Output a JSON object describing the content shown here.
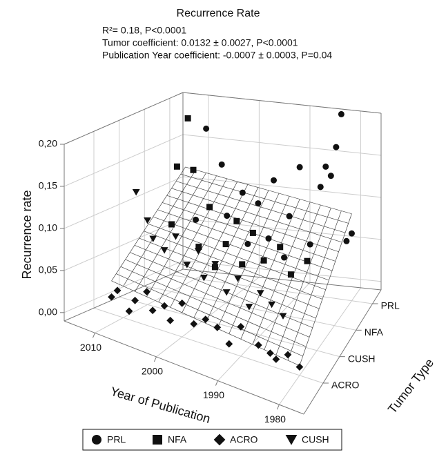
{
  "chart_data": {
    "type": "scatter3d",
    "title": "Recurrence Rate",
    "annotations": [
      "R²= 0.18, P<0.0001",
      "Tumor coefficient: 0.0132 ± 0.0027, P<0.0001",
      "Publication Year coefficient: -0.0007 ± 0.0003, P=0.04"
    ],
    "xlabel": "Year of Publication",
    "ylabel": "Tumor Type",
    "zlabel": "Recurrence rate",
    "xlim": [
      1976,
      2015
    ],
    "xticks": [
      2010,
      2000,
      1990,
      1980
    ],
    "categories": [
      "ACRO",
      "CUSH",
      "NFA",
      "PRL"
    ],
    "zlim": [
      -0.01,
      0.2
    ],
    "zticks": [
      {
        "value": 0,
        "label": "0,00"
      },
      {
        "value": 0.05,
        "label": "0,05"
      },
      {
        "value": 0.1,
        "label": "0,10"
      },
      {
        "value": 0.15,
        "label": "0,15"
      },
      {
        "value": 0.2,
        "label": "0,20"
      }
    ],
    "series": [
      {
        "name": "PRL",
        "marker": "circle",
        "color": "#111111",
        "x": [
          2008,
          2005,
          1982,
          1983,
          1985,
          1990,
          1984,
          1995,
          1986,
          2001,
          1998,
          1992,
          2004,
          1980,
          1981,
          1996,
          2010,
          1988,
          2000,
          1993
        ],
        "values": [
          0.17,
          0.13,
          0.21,
          0.17,
          0.145,
          0.14,
          0.135,
          0.12,
          0.12,
          0.1,
          0.09,
          0.08,
          0.07,
          0.07,
          0.06,
          0.05,
          0.06,
          0.05,
          0.04,
          0.03
        ]
      },
      {
        "name": "NFA",
        "marker": "square",
        "color": "#111111",
        "x": [
          2007,
          2009,
          2006,
          2003,
          1998,
          1995,
          2010,
          1990,
          2000,
          1985,
          2005,
          1993,
          1988,
          2002,
          1997
        ],
        "values": [
          0.2,
          0.14,
          0.14,
          0.1,
          0.09,
          0.08,
          0.07,
          0.07,
          0.06,
          0.06,
          0.05,
          0.05,
          0.04,
          0.03,
          0.04
        ]
      },
      {
        "name": "ACRO",
        "marker": "diamond",
        "color": "#111111",
        "x": [
          2012,
          2011,
          2009,
          2008,
          2006,
          2005,
          2003,
          2002,
          2000,
          1998,
          1996,
          1994,
          1992,
          1990,
          1987,
          1985,
          1984,
          1982,
          1980
        ],
        "values": [
          0.01,
          0.02,
          0,
          0.015,
          0.03,
          0.01,
          0.02,
          0.005,
          0.03,
          0.01,
          0.02,
          0.015,
          0,
          0.025,
          0.01,
          0.005,
          0,
          0.01,
          0
        ]
      },
      {
        "name": "CUSH",
        "marker": "triangle-down",
        "color": "#111111",
        "x": [
          2012,
          2010,
          2009,
          2007,
          2005,
          2003,
          2001,
          2000,
          1998,
          1996,
          1994,
          1992,
          1990,
          1988,
          1986
        ],
        "values": [
          0.12,
          0.09,
          0.07,
          0.06,
          0.08,
          0.05,
          0.07,
          0.04,
          0.06,
          0.03,
          0.05,
          0.02,
          0.04,
          0.03,
          0.02
        ]
      }
    ]
  }
}
